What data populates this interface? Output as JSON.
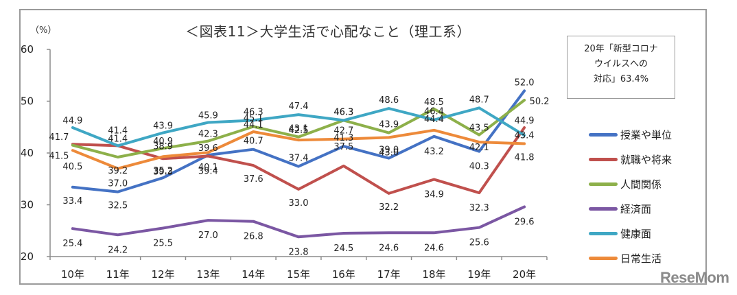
{
  "chart_data": {
    "type": "line",
    "title": "＜図表11＞大学生活で心配なこと（理工系）",
    "ylabel": "（%）",
    "xlabel": "",
    "ylim": [
      20,
      60
    ],
    "yticks": [
      20,
      30,
      40,
      50,
      60
    ],
    "grid": false,
    "legend_position": "right",
    "categories": [
      "10年",
      "11年",
      "12年",
      "13年",
      "14年",
      "15年",
      "16年",
      "17年",
      "18年",
      "19年",
      "20年"
    ],
    "series": [
      {
        "name": "授業や単位",
        "color": "#4472c4",
        "values": [
          33.4,
          32.5,
          35.2,
          39.6,
          40.7,
          37.4,
          41.3,
          39.0,
          43.2,
          40.3,
          52.0
        ]
      },
      {
        "name": "就職や将来",
        "color": "#c0504d",
        "values": [
          41.7,
          41.4,
          38.9,
          39.4,
          37.6,
          33.0,
          37.5,
          32.2,
          34.9,
          32.3,
          44.9
        ]
      },
      {
        "name": "人間関係",
        "color": "#8db04a",
        "values": [
          41.5,
          39.2,
          40.9,
          42.3,
          45.1,
          43.1,
          46.3,
          43.9,
          48.5,
          43.5,
          50.2
        ]
      },
      {
        "name": "経済面",
        "color": "#7b57a3",
        "values": [
          25.4,
          24.2,
          25.5,
          27.0,
          26.8,
          23.8,
          24.5,
          24.6,
          24.6,
          25.6,
          29.6
        ]
      },
      {
        "name": "健康面",
        "color": "#3fa7c4",
        "values": [
          44.9,
          41.4,
          43.9,
          45.9,
          46.3,
          47.4,
          46.3,
          48.6,
          46.4,
          48.7,
          43.4
        ]
      },
      {
        "name": "日常生活",
        "color": "#ed8a3a",
        "values": [
          40.5,
          37.0,
          39.3,
          40.1,
          44.1,
          42.5,
          42.7,
          43.0,
          44.4,
          42.1,
          41.8
        ]
      }
    ],
    "annotation": {
      "lines": [
        "20年「新型コロナ",
        "ウイルスへの",
        "対応」63.4%"
      ]
    }
  },
  "watermark": "ReseMom"
}
